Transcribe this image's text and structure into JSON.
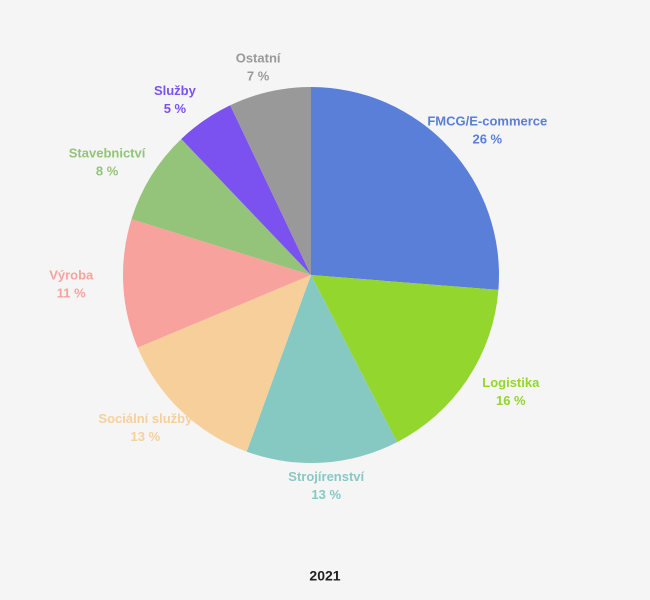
{
  "chart_data": {
    "type": "pie",
    "title": "2021",
    "categories": [
      "FMCG/E-commerce",
      "Logistika",
      "Strojírenství",
      "Sociální služby",
      "Výroba",
      "Stavebnictví",
      "Služby",
      "Ostatní"
    ],
    "values": [
      26,
      16,
      13,
      13,
      11,
      8,
      5,
      7
    ],
    "value_labels": [
      "26 %",
      "16 %",
      "13 %",
      "13 %",
      "11 %",
      "8 %",
      "5 %",
      "7 %"
    ],
    "colors": [
      "#5a7fd9",
      "#93d62e",
      "#86c9c3",
      "#f7cf9a",
      "#f8a29e",
      "#93c47a",
      "#7b52f0",
      "#999999"
    ]
  }
}
